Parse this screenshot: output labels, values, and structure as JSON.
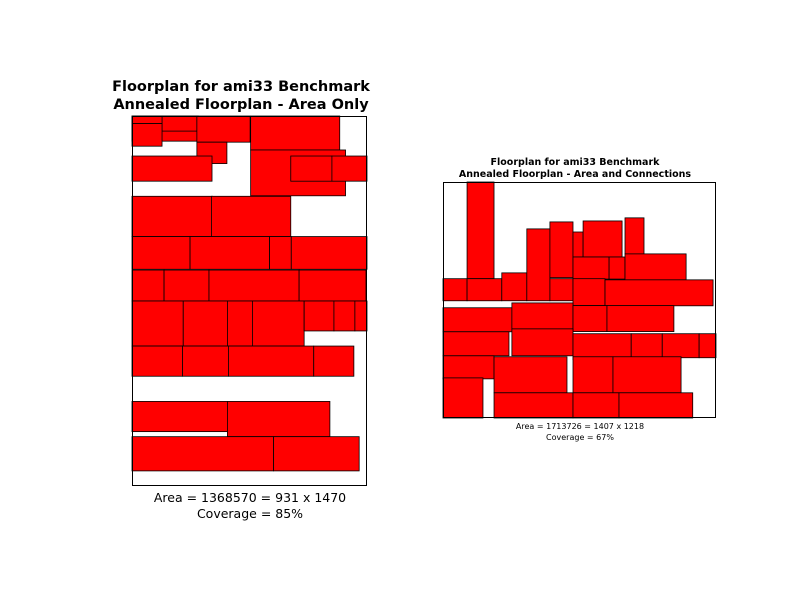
{
  "colors": {
    "block_fill": "#ff0000",
    "block_stroke": "#000000",
    "frame": "#000000",
    "background": "#ffffff"
  },
  "chart_data": [
    {
      "type": "floorplan",
      "title": "Floorplan for ami33 Benchmark",
      "subtitle": "Annealed Floorplan - Area Only",
      "caption_area": "Area = 1368570 = 931 x 1470",
      "caption_coverage": "Coverage = 85%",
      "width": 931,
      "height": 1470,
      "coverage_percent": 85,
      "units": "y measured from top of outline",
      "blocks": [
        [
          0,
          0,
          263,
          100
        ],
        [
          119,
          0,
          138,
          60
        ],
        [
          257,
          0,
          211,
          104
        ],
        [
          257,
          104,
          119,
          85
        ],
        [
          0,
          0,
          119,
          30
        ],
        [
          0,
          30,
          119,
          90
        ],
        [
          470,
          0,
          353,
          135
        ],
        [
          470,
          135,
          376,
          182
        ],
        [
          0,
          319,
          319,
          160
        ],
        [
          0,
          159,
          317,
          100
        ],
        [
          315,
          319,
          314,
          160
        ],
        [
          629,
          159,
          163,
          100
        ],
        [
          792,
          159,
          139,
          100
        ],
        [
          0,
          479,
          230,
          130
        ],
        [
          230,
          479,
          315,
          130
        ],
        [
          545,
          479,
          86,
          130
        ],
        [
          631,
          479,
          300,
          130
        ],
        [
          0,
          612,
          127,
          123
        ],
        [
          127,
          612,
          178,
          123
        ],
        [
          305,
          612,
          357,
          123
        ],
        [
          662,
          612,
          265,
          123
        ],
        [
          0,
          735,
          203,
          179
        ],
        [
          203,
          735,
          175,
          179
        ],
        [
          378,
          735,
          99,
          179
        ],
        [
          477,
          735,
          205,
          179
        ],
        [
          682,
          735,
          118,
          119
        ],
        [
          800,
          735,
          83,
          119
        ],
        [
          883,
          735,
          48,
          119
        ],
        [
          0,
          914,
          200,
          120
        ],
        [
          200,
          914,
          182,
          120
        ],
        [
          382,
          914,
          338,
          120
        ],
        [
          720,
          914,
          159,
          120
        ],
        [
          0,
          1134,
          378,
          120
        ],
        [
          378,
          1134,
          406,
          140
        ],
        [
          0,
          1274,
          561,
          136
        ],
        [
          561,
          1274,
          339,
          136
        ]
      ]
    },
    {
      "type": "floorplan",
      "title": "Floorplan for ami33 Benchmark",
      "subtitle": "Annealed Floorplan - Area and Connections",
      "caption_area": "Area = 1713726 = 1407 x 1218",
      "caption_coverage": "Coverage = 67%",
      "width": 1407,
      "height": 1218,
      "coverage_percent": 67,
      "units": "y measured from top of outline",
      "blocks": [
        [
          124,
          0,
          139,
          499
        ],
        [
          0,
          499,
          124,
          114
        ],
        [
          124,
          499,
          179,
          114
        ],
        [
          303,
          469,
          129,
          144
        ],
        [
          432,
          242,
          119,
          371
        ],
        [
          551,
          206,
          119,
          288
        ],
        [
          670,
          258,
          52,
          129
        ],
        [
          722,
          201,
          201,
          186
        ],
        [
          938,
          185,
          98,
          186
        ],
        [
          670,
          387,
          186,
          114
        ],
        [
          856,
          387,
          82,
          114
        ],
        [
          938,
          371,
          315,
          134
        ],
        [
          551,
          499,
          119,
          114
        ],
        [
          670,
          499,
          165,
          139
        ],
        [
          835,
          505,
          557,
          134
        ],
        [
          0,
          649,
          355,
          124
        ],
        [
          355,
          624,
          315,
          134
        ],
        [
          670,
          638,
          175,
          134
        ],
        [
          845,
          638,
          345,
          134
        ],
        [
          0,
          773,
          340,
          124
        ],
        [
          355,
          758,
          315,
          139
        ],
        [
          670,
          783,
          300,
          134
        ],
        [
          970,
          783,
          160,
          124
        ],
        [
          1130,
          783,
          190,
          124
        ],
        [
          1320,
          783,
          87,
          124
        ],
        [
          0,
          897,
          263,
          119
        ],
        [
          263,
          902,
          376,
          186
        ],
        [
          670,
          902,
          206,
          186
        ],
        [
          876,
          902,
          351,
          186
        ],
        [
          0,
          1011,
          206,
          207
        ],
        [
          263,
          1088,
          407,
          130
        ],
        [
          670,
          1088,
          237,
          130
        ],
        [
          907,
          1088,
          380,
          130
        ]
      ]
    }
  ]
}
